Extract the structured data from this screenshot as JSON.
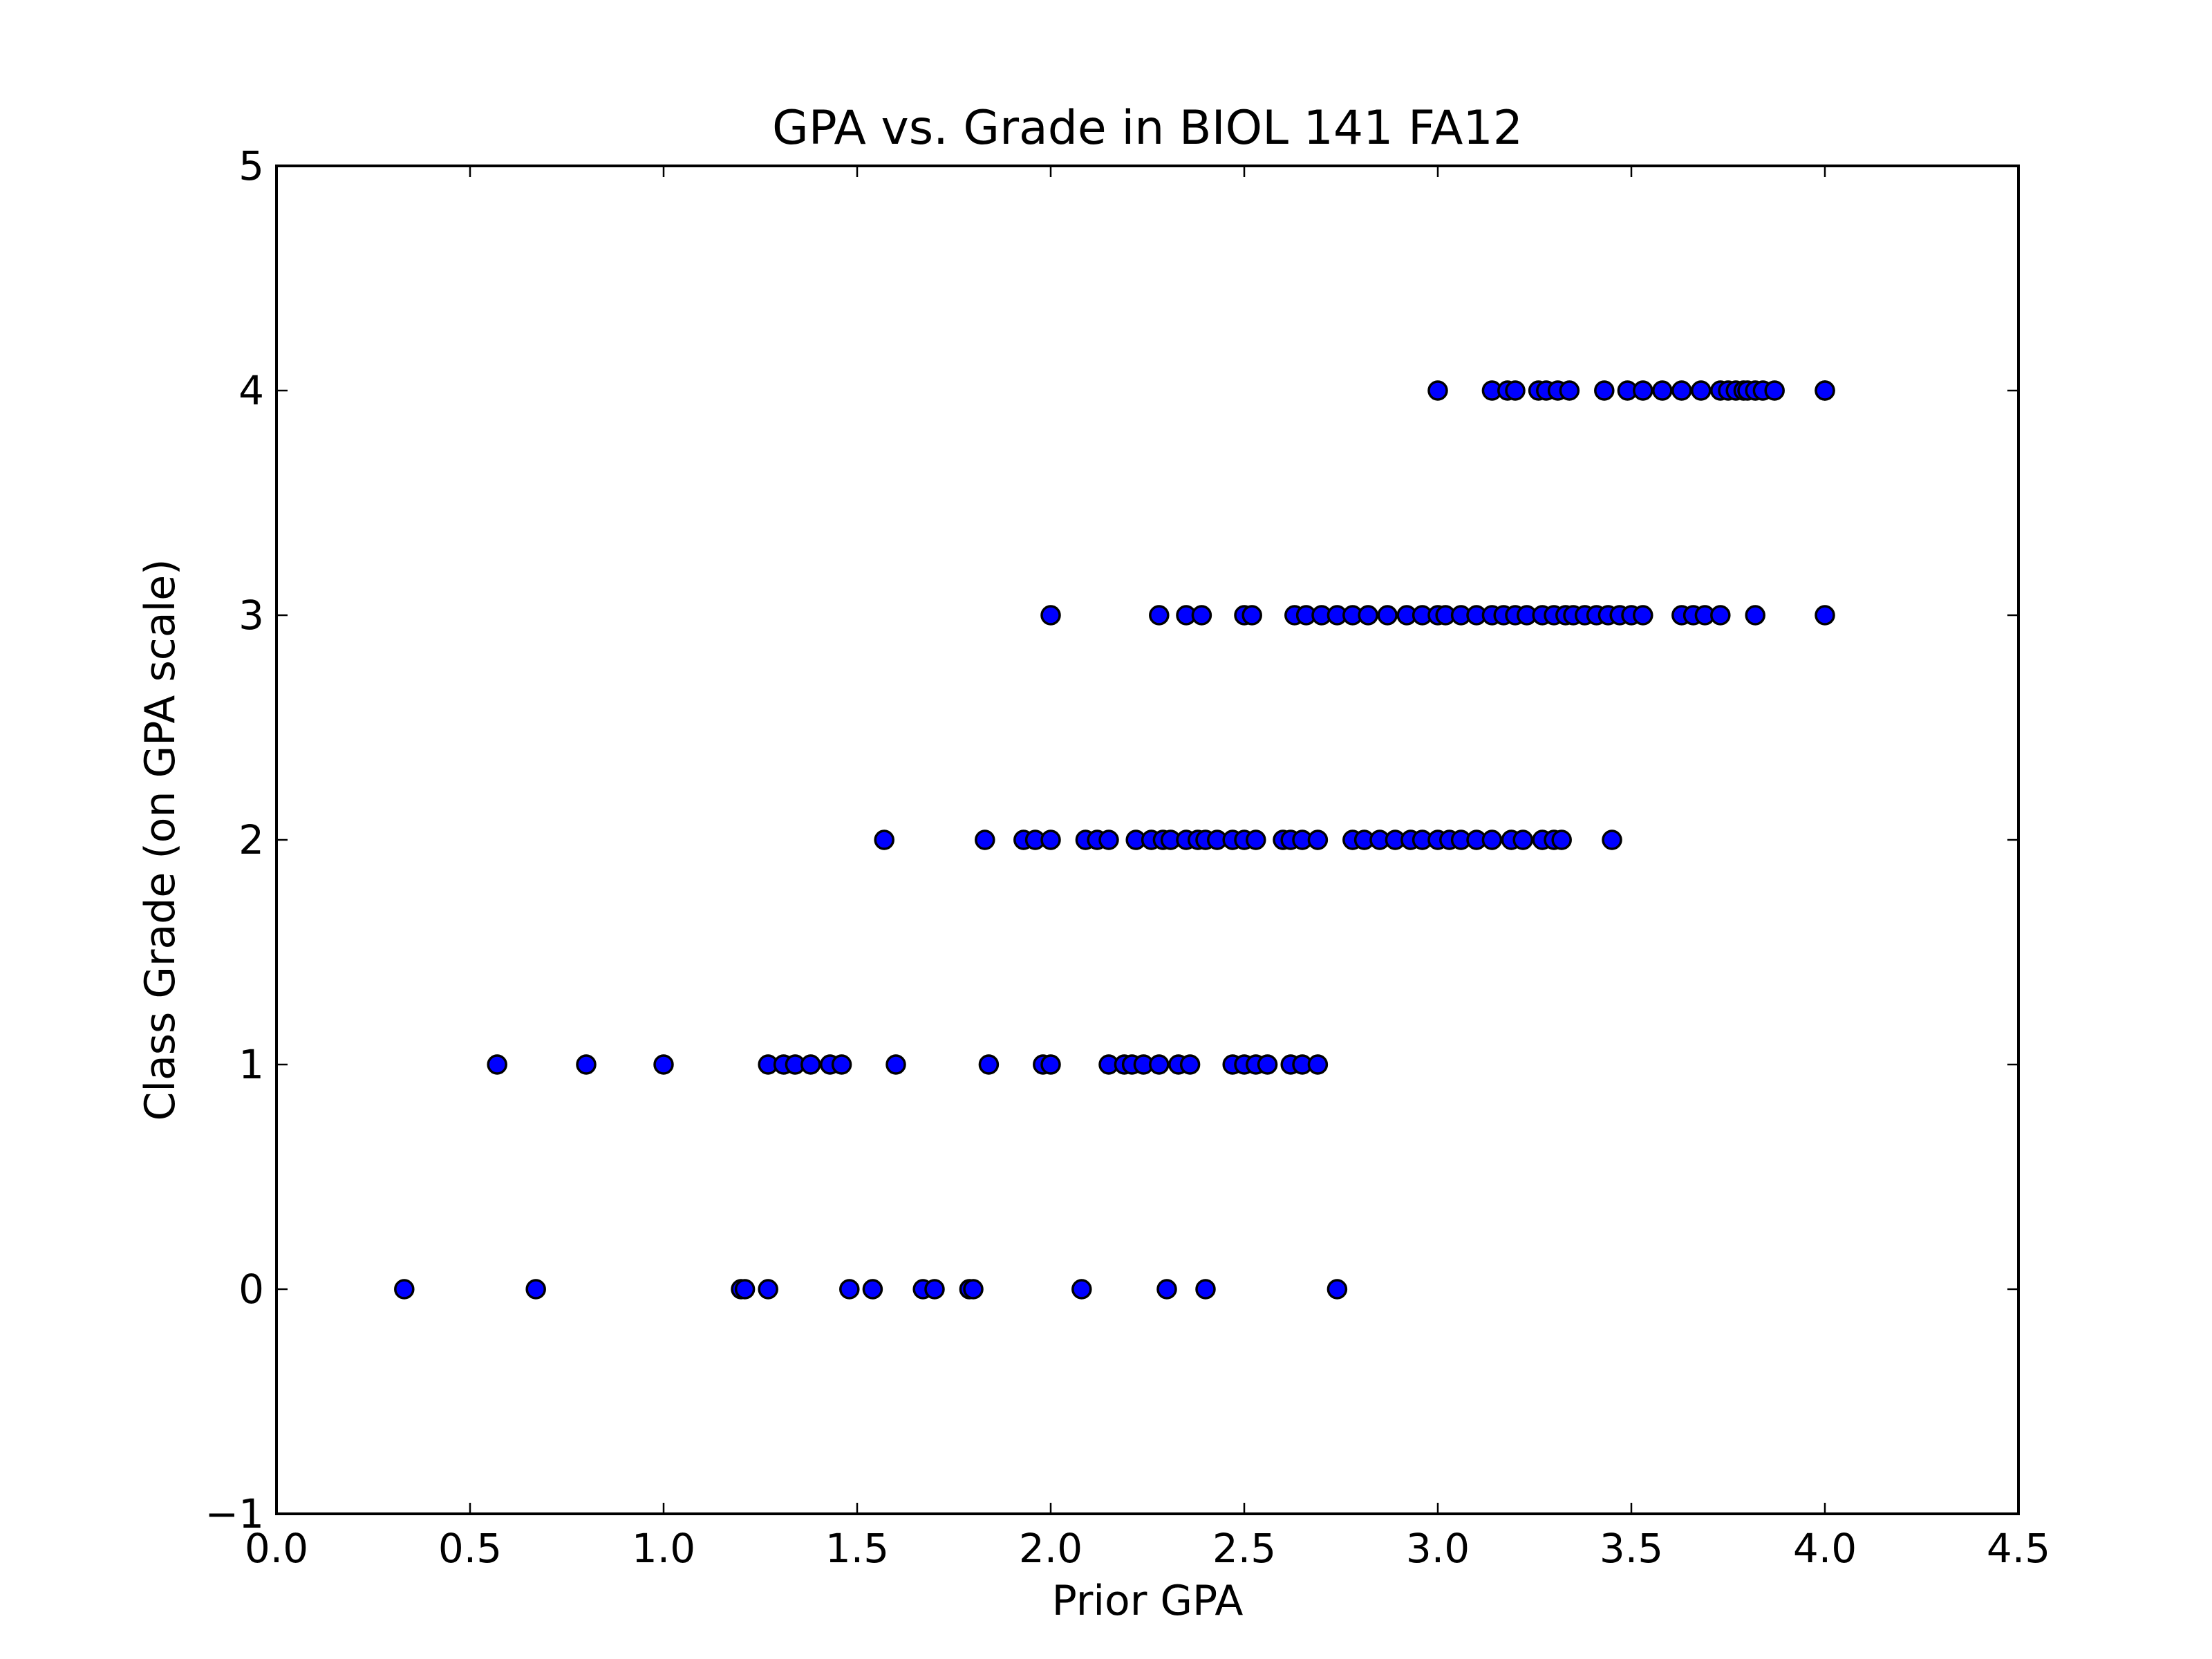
{
  "chart_data": {
    "type": "scatter",
    "title": "GPA vs. Grade in BIOL 141 FA12",
    "xlabel": "Prior GPA",
    "ylabel": "Class Grade (on GPA scale)",
    "xlim": [
      0.0,
      4.5
    ],
    "ylim": [
      -1,
      5
    ],
    "xticks": [
      "0.0",
      "0.5",
      "1.0",
      "1.5",
      "2.0",
      "2.5",
      "3.0",
      "3.5",
      "4.0",
      "4.5"
    ],
    "yticks": [
      "−1",
      "0",
      "1",
      "2",
      "3",
      "4",
      "5"
    ],
    "grid": false,
    "marker_color": "#0000ff",
    "marker_edge_color": "#000000",
    "series": [
      {
        "x": [
          3.0,
          3.14,
          3.18,
          3.2,
          3.26,
          3.28,
          3.31,
          3.34,
          3.43,
          3.49,
          3.53,
          3.58,
          3.63,
          3.68,
          3.73,
          3.75,
          3.77,
          3.79,
          3.8,
          3.82,
          3.84,
          3.87,
          4.0,
          4.0,
          2.0,
          2.28,
          2.35,
          2.39,
          2.5,
          2.52,
          2.63,
          2.66,
          2.7,
          2.74,
          2.78,
          2.82,
          2.87,
          2.92,
          2.96,
          3.0,
          3.02,
          3.06,
          3.1,
          3.14,
          3.17,
          3.2,
          3.23,
          3.27,
          3.3,
          3.33,
          3.35,
          3.38,
          3.41,
          3.44,
          3.47,
          3.5,
          3.53,
          3.63,
          3.66,
          3.69,
          3.73,
          3.82,
          4.0,
          1.57,
          1.83,
          1.93,
          1.96,
          2.0,
          2.09,
          2.12,
          2.15,
          2.22,
          2.26,
          2.29,
          2.31,
          2.35,
          2.38,
          2.4,
          2.43,
          2.47,
          2.5,
          2.53,
          2.6,
          2.62,
          2.65,
          2.69,
          2.78,
          2.81,
          2.85,
          2.89,
          2.93,
          2.96,
          3.0,
          3.03,
          3.06,
          3.1,
          3.14,
          3.19,
          3.22,
          3.27,
          3.3,
          3.32,
          3.45,
          0.57,
          0.8,
          1.0,
          1.27,
          1.31,
          1.34,
          1.38,
          1.43,
          1.46,
          1.6,
          1.84,
          1.98,
          2.0,
          2.15,
          2.19,
          2.21,
          2.24,
          2.28,
          2.33,
          2.36,
          2.47,
          2.5,
          2.53,
          2.56,
          2.62,
          2.65,
          2.69,
          0.33,
          0.67,
          1.2,
          1.21,
          1.27,
          1.48,
          1.54,
          1.67,
          1.7,
          1.79,
          1.8,
          2.08,
          2.3,
          2.4,
          2.74
        ],
        "y": [
          4,
          4,
          4,
          4,
          4,
          4,
          4,
          4,
          4,
          4,
          4,
          4,
          4,
          4,
          4,
          4,
          4,
          4,
          4,
          4,
          4,
          4,
          4,
          4,
          3,
          3,
          3,
          3,
          3,
          3,
          3,
          3,
          3,
          3,
          3,
          3,
          3,
          3,
          3,
          3,
          3,
          3,
          3,
          3,
          3,
          3,
          3,
          3,
          3,
          3,
          3,
          3,
          3,
          3,
          3,
          3,
          3,
          3,
          3,
          3,
          3,
          3,
          3,
          2,
          2,
          2,
          2,
          2,
          2,
          2,
          2,
          2,
          2,
          2,
          2,
          2,
          2,
          2,
          2,
          2,
          2,
          2,
          2,
          2,
          2,
          2,
          2,
          2,
          2,
          2,
          2,
          2,
          2,
          2,
          2,
          2,
          2,
          2,
          2,
          2,
          2,
          2,
          2,
          1,
          1,
          1,
          1,
          1,
          1,
          1,
          1,
          1,
          1,
          1,
          1,
          1,
          1,
          1,
          1,
          1,
          1,
          1,
          1,
          1,
          1,
          1,
          1,
          1,
          1,
          1,
          0,
          0,
          0,
          0,
          0,
          0,
          0,
          0,
          0,
          0,
          0,
          0,
          0,
          0,
          0
        ]
      }
    ]
  }
}
